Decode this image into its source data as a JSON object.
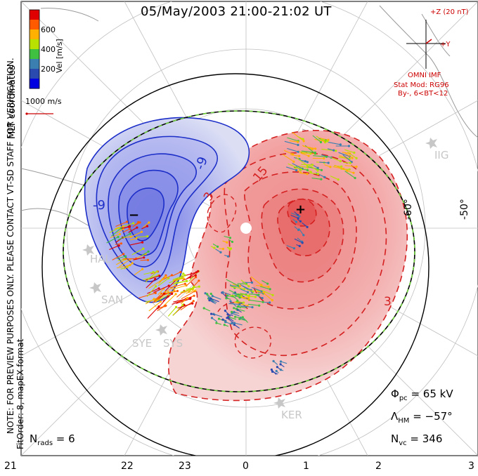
{
  "title": "05/May/2003 21:00-21:02 UT",
  "colorbar": {
    "label": "Vel [m/s]",
    "ticks": [
      "600",
      "400",
      "200"
    ],
    "colors": [
      "#e00000",
      "#ff5a00",
      "#ffb000",
      "#b8e000",
      "#40c040",
      "#3a7fb0",
      "#2a4ab0",
      "#0000e0"
    ]
  },
  "coordinates_label": "MLT coordinates",
  "velocity_scale": "1000 m/s",
  "note": "NOTE: FOR PREVIEW PURPOSES ONLY. PLEASE CONTACT VT-SD STAFF FOR VERIFICATION.",
  "fit_order": "FitOrder: 8, mapEX format",
  "imf": {
    "bz_label": "+Z (20 nT)",
    "by_label": "+Y",
    "source": "OMNI IMF",
    "stat_mod": "Stat Mod: RG96",
    "condition": "By-, 6<BT<12"
  },
  "stats": {
    "phi_pc": "65 kV",
    "lambda_hm": "−57°",
    "n_vc": "346",
    "n_rads": "6"
  },
  "contour_labels": [
    "-9",
    "-9",
    "3",
    "15",
    "3"
  ],
  "potential_markers": {
    "min": "−",
    "max": "+"
  },
  "latitude_labels": [
    "-60°",
    "-50°"
  ],
  "mlt_ticks": [
    "21",
    "22",
    "23",
    "0",
    "1",
    "2",
    "3"
  ],
  "stations": [
    "IIG",
    "HAL",
    "SAN",
    "SYE",
    "SYS",
    "KER"
  ],
  "colors": {
    "negative": "#1c2ec8",
    "positive": "#d42020",
    "hmb": "#6fd23c"
  }
}
